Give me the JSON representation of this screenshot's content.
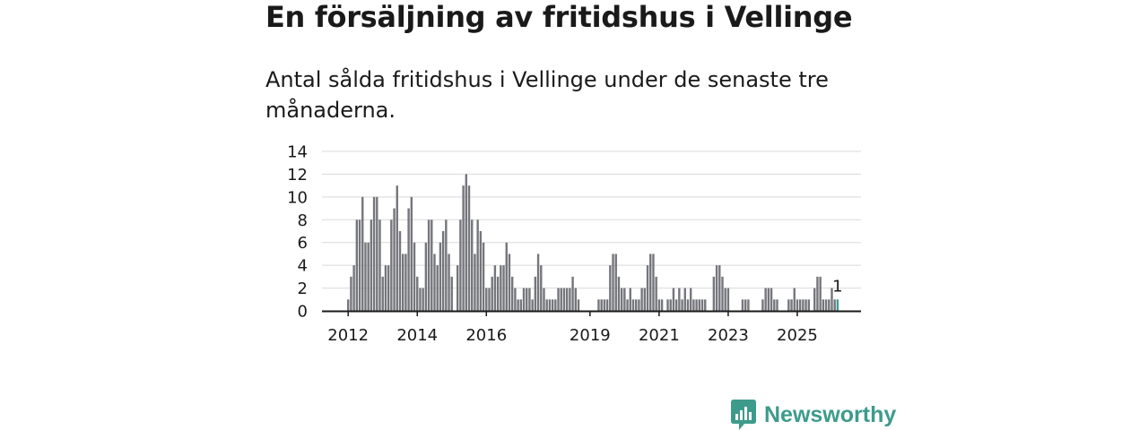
{
  "header": {
    "title": "En försäljning av fritidshus i Vellinge",
    "subtitle": "Antal sålda fritidshus i Vellinge under de senaste tre månaderna."
  },
  "brand": {
    "name": "Newsworthy",
    "color": "#3d9b8c"
  },
  "chart_data": {
    "type": "bar",
    "title": "En försäljning av fritidshus i Vellinge",
    "subtitle": "Antal sålda fritidshus i Vellinge under de senaste tre månaderna.",
    "xlabel": "",
    "ylabel": "",
    "ylim": [
      0,
      14
    ],
    "yticks": [
      0,
      2,
      4,
      6,
      8,
      10,
      12,
      14
    ],
    "grid": true,
    "start": "2012-01",
    "xtick_labels": [
      {
        "label": "2012",
        "index": 0
      },
      {
        "label": "2014",
        "index": 24
      },
      {
        "label": "2016",
        "index": 48
      },
      {
        "label": "2019",
        "index": 84
      },
      {
        "label": "2021",
        "index": 108
      },
      {
        "label": "2023",
        "index": 132
      },
      {
        "label": "2025",
        "index": 156
      }
    ],
    "colors": {
      "bars": "#75767c",
      "highlight": "#3a9f95",
      "grid": "#d9d9d9",
      "axis": "#1a1a1a"
    },
    "highlight_label": "1",
    "series": [
      {
        "name": "Antal sålda fritidshus",
        "values": [
          1,
          3,
          4,
          8,
          8,
          10,
          6,
          6,
          8,
          10,
          10,
          8,
          3,
          4,
          4,
          8,
          9,
          11,
          7,
          5,
          5,
          9,
          10,
          6,
          3,
          2,
          2,
          6,
          8,
          8,
          5,
          4,
          6,
          7,
          8,
          5,
          3,
          0,
          4,
          8,
          11,
          12,
          11,
          8,
          5,
          8,
          7,
          6,
          2,
          2,
          3,
          4,
          3,
          4,
          4,
          6,
          5,
          3,
          2,
          1,
          1,
          2,
          2,
          2,
          1,
          3,
          5,
          4,
          2,
          1,
          1,
          1,
          1,
          2,
          2,
          2,
          2,
          2,
          3,
          2,
          1,
          0,
          0,
          0,
          0,
          0,
          0,
          1,
          1,
          1,
          1,
          4,
          5,
          5,
          3,
          2,
          2,
          1,
          2,
          1,
          1,
          1,
          2,
          2,
          4,
          5,
          5,
          3,
          1,
          1,
          0,
          1,
          1,
          2,
          1,
          2,
          1,
          2,
          1,
          2,
          1,
          1,
          1,
          1,
          1,
          0,
          0,
          3,
          4,
          4,
          3,
          2,
          2,
          0,
          0,
          0,
          0,
          1,
          1,
          1,
          0,
          0,
          0,
          0,
          1,
          2,
          2,
          2,
          1,
          1,
          0,
          0,
          0,
          1,
          1,
          2,
          1,
          1,
          1,
          1,
          1,
          0,
          2,
          3,
          3,
          1,
          1,
          1,
          2,
          1,
          1
        ]
      }
    ]
  }
}
